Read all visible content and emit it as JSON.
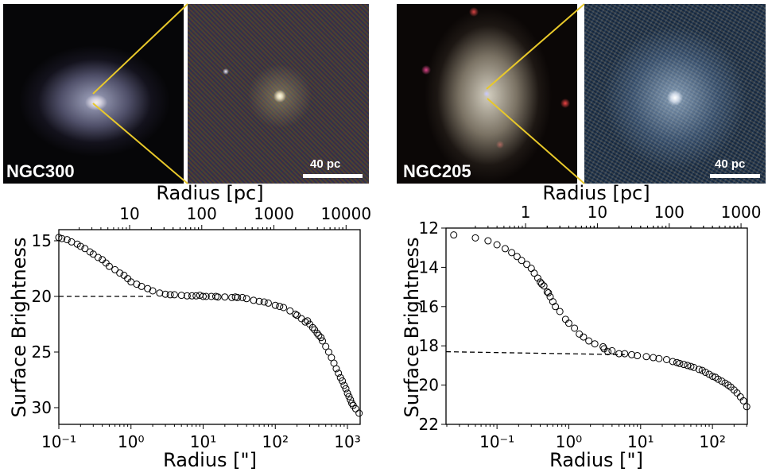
{
  "panels": [
    {
      "galaxy_label": "NGC300",
      "scale_bar_label": "40 pc"
    },
    {
      "galaxy_label": "NGC205",
      "scale_bar_label": "40 pc"
    }
  ],
  "colors": {
    "zoom_lines": "#e8c82a",
    "markers": "#000000",
    "background": "#ffffff"
  },
  "chart_data": [
    {
      "type": "scatter",
      "galaxy": "NGC300",
      "xlabel": "Radius [\"]",
      "top_xlabel": "Radius [pc]",
      "ylabel": "Surface Brightness",
      "xscale": "log",
      "xlim": [
        0.1,
        1500
      ],
      "ylim": [
        31.5,
        14
      ],
      "y_inverted": true,
      "xticks": [
        "10^-1",
        "10^0",
        "10^1",
        "10^2",
        "10^3"
      ],
      "xtick_values": [
        0.1,
        1,
        10,
        100,
        1000
      ],
      "top_xticks": [
        "10",
        "100",
        "1000",
        "10000"
      ],
      "top_xtick_values_arcsec": [
        0.957,
        9.57,
        95.7,
        957
      ],
      "yticks": [
        15,
        20,
        25,
        30
      ],
      "grid": false,
      "points": [
        [
          0.1,
          14.7
        ],
        [
          0.11,
          14.8
        ],
        [
          0.13,
          14.9
        ],
        [
          0.15,
          15.1
        ],
        [
          0.18,
          15.3
        ],
        [
          0.2,
          15.5
        ],
        [
          0.23,
          15.7
        ],
        [
          0.27,
          16.0
        ],
        [
          0.3,
          16.2
        ],
        [
          0.35,
          16.5
        ],
        [
          0.4,
          16.7
        ],
        [
          0.45,
          17.0
        ],
        [
          0.5,
          17.3
        ],
        [
          0.6,
          17.6
        ],
        [
          0.7,
          17.9
        ],
        [
          0.8,
          18.1
        ],
        [
          0.9,
          18.4
        ],
        [
          1.0,
          18.7
        ],
        [
          1.2,
          18.9
        ],
        [
          1.4,
          19.1
        ],
        [
          1.7,
          19.3
        ],
        [
          2,
          19.5
        ],
        [
          2.5,
          19.7
        ],
        [
          3,
          19.8
        ],
        [
          3.5,
          19.85
        ],
        [
          4,
          19.85
        ],
        [
          5,
          19.9
        ],
        [
          6,
          19.95
        ],
        [
          7,
          19.95
        ],
        [
          8,
          19.95
        ],
        [
          9,
          19.9
        ],
        [
          10,
          20.0
        ],
        [
          11,
          20.0
        ],
        [
          13,
          20.0
        ],
        [
          15,
          20.0
        ],
        [
          16,
          20.05
        ],
        [
          20,
          20.05
        ],
        [
          25,
          20.1
        ],
        [
          28,
          20.05
        ],
        [
          30,
          20.1
        ],
        [
          35,
          20.1
        ],
        [
          40,
          20.2
        ],
        [
          50,
          20.35
        ],
        [
          60,
          20.45
        ],
        [
          70,
          20.5
        ],
        [
          80,
          20.6
        ],
        [
          100,
          20.8
        ],
        [
          115,
          20.9
        ],
        [
          130,
          21.0
        ],
        [
          160,
          21.3
        ],
        [
          190,
          21.6
        ],
        [
          200,
          21.7
        ],
        [
          230,
          22.0
        ],
        [
          260,
          22.3
        ],
        [
          280,
          22.2
        ],
        [
          300,
          22.5
        ],
        [
          330,
          22.8
        ],
        [
          350,
          23.0
        ],
        [
          380,
          23.3
        ],
        [
          400,
          23.5
        ],
        [
          430,
          23.7
        ],
        [
          450,
          24.0
        ],
        [
          500,
          24.5
        ],
        [
          550,
          25.0
        ],
        [
          600,
          25.5
        ],
        [
          650,
          26.0
        ],
        [
          700,
          26.5
        ],
        [
          750,
          26.9
        ],
        [
          800,
          27.3
        ],
        [
          850,
          27.6
        ],
        [
          900,
          28.0
        ],
        [
          950,
          28.3
        ],
        [
          1000,
          28.7
        ],
        [
          1050,
          29.0
        ],
        [
          1100,
          29.3
        ],
        [
          1150,
          29.6
        ],
        [
          1200,
          29.8
        ],
        [
          1300,
          30.1
        ],
        [
          1450,
          30.5
        ]
      ],
      "dashed_line": {
        "y": 20.0,
        "x_from": 0.1,
        "x_to": 2.0
      }
    },
    {
      "type": "scatter",
      "galaxy": "NGC205",
      "xlabel": "Radius [\"]",
      "top_xlabel": "Radius [pc]",
      "ylabel": "Surface Brightness",
      "xscale": "log",
      "xlim": [
        0.0195,
        306
      ],
      "ylim": [
        22,
        12
      ],
      "y_inverted": true,
      "xticks": [
        "10^-1",
        "10^0",
        "10^1",
        "10^2"
      ],
      "xtick_values": [
        0.1,
        1,
        10,
        100
      ],
      "top_xticks": [
        "1",
        "10",
        "100",
        "1000"
      ],
      "top_xtick_values_arcsec": [
        0.25,
        2.5,
        25,
        250
      ],
      "yticks": [
        12,
        14,
        16,
        18,
        20,
        22
      ],
      "grid": false,
      "points": [
        [
          0.025,
          12.35
        ],
        [
          0.05,
          12.5
        ],
        [
          0.075,
          12.65
        ],
        [
          0.1,
          12.85
        ],
        [
          0.13,
          13.05
        ],
        [
          0.16,
          13.25
        ],
        [
          0.19,
          13.45
        ],
        [
          0.22,
          13.65
        ],
        [
          0.26,
          13.85
        ],
        [
          0.3,
          14.05
        ],
        [
          0.33,
          14.3
        ],
        [
          0.37,
          14.55
        ],
        [
          0.4,
          14.75
        ],
        [
          0.42,
          14.85
        ],
        [
          0.45,
          14.95
        ],
        [
          0.5,
          15.25
        ],
        [
          0.52,
          15.3
        ],
        [
          0.55,
          15.5
        ],
        [
          0.6,
          15.75
        ],
        [
          0.65,
          16.0
        ],
        [
          0.75,
          16.25
        ],
        [
          0.9,
          16.65
        ],
        [
          1.0,
          16.85
        ],
        [
          1.2,
          17.1
        ],
        [
          1.4,
          17.4
        ],
        [
          1.6,
          17.55
        ],
        [
          1.9,
          17.75
        ],
        [
          2.3,
          17.9
        ],
        [
          3,
          18.05
        ],
        [
          3.1,
          18.15
        ],
        [
          3.5,
          18.3
        ],
        [
          4,
          18.25
        ],
        [
          5,
          18.4
        ],
        [
          6,
          18.4
        ],
        [
          7.5,
          18.45
        ],
        [
          9,
          18.5
        ],
        [
          12,
          18.55
        ],
        [
          15,
          18.6
        ],
        [
          18,
          18.65
        ],
        [
          23,
          18.7
        ],
        [
          28,
          18.8
        ],
        [
          32,
          18.85
        ],
        [
          35,
          18.9
        ],
        [
          40,
          18.95
        ],
        [
          45,
          19.0
        ],
        [
          50,
          19.05
        ],
        [
          55,
          19.1
        ],
        [
          65,
          19.2
        ],
        [
          72,
          19.25
        ],
        [
          80,
          19.35
        ],
        [
          90,
          19.45
        ],
        [
          100,
          19.55
        ],
        [
          110,
          19.6
        ],
        [
          120,
          19.7
        ],
        [
          135,
          19.8
        ],
        [
          150,
          19.9
        ],
        [
          165,
          20.0
        ],
        [
          180,
          20.1
        ],
        [
          200,
          20.25
        ],
        [
          220,
          20.4
        ],
        [
          245,
          20.6
        ],
        [
          270,
          20.8
        ],
        [
          300,
          21.1
        ]
      ],
      "dashed_line": {
        "y_from": 18.3,
        "y_to": 18.45,
        "x_from": 0.0195,
        "x_to": 6
      }
    }
  ]
}
